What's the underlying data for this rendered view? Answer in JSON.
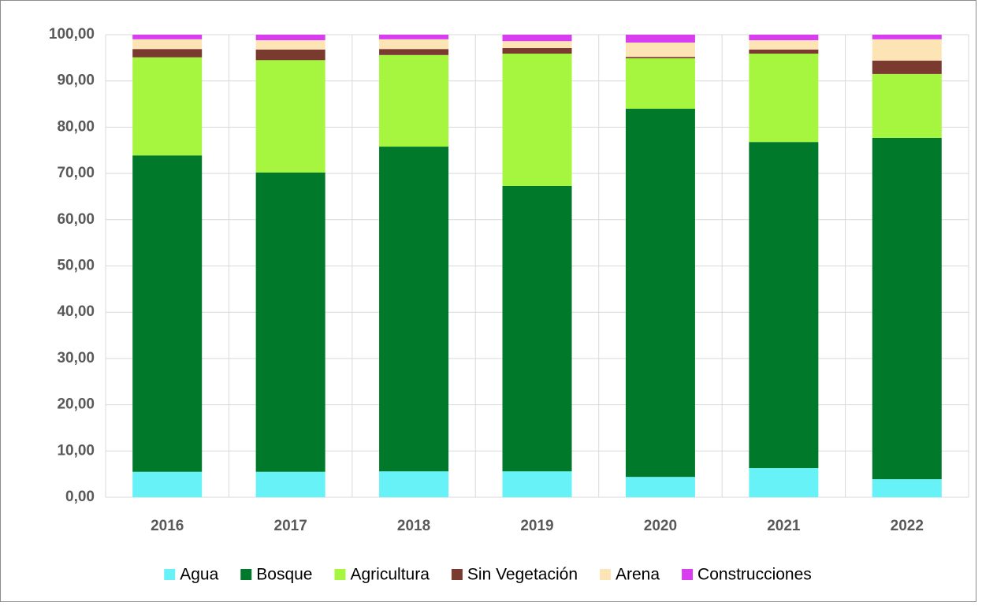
{
  "chart_data": {
    "type": "stacked_bar",
    "categories": [
      "2016",
      "2017",
      "2018",
      "2019",
      "2020",
      "2021",
      "2022"
    ],
    "series": [
      {
        "name": "Agua",
        "color": "#66f2f7",
        "values": [
          5.5,
          5.5,
          5.6,
          5.6,
          4.4,
          6.3,
          3.9
        ]
      },
      {
        "name": "Bosque",
        "color": "#007a2a",
        "values": [
          68.4,
          64.7,
          70.2,
          61.7,
          79.6,
          70.5,
          73.8
        ]
      },
      {
        "name": "Agricultura",
        "color": "#a6f53e",
        "values": [
          21.2,
          24.3,
          19.8,
          28.6,
          10.9,
          19.1,
          13.8
        ]
      },
      {
        "name": "Sin Vegetación",
        "color": "#7a3a30",
        "values": [
          1.8,
          2.3,
          1.3,
          1.2,
          0.3,
          0.9,
          2.9
        ]
      },
      {
        "name": "Arena",
        "color": "#fce4b4",
        "values": [
          2.1,
          2.0,
          2.1,
          1.5,
          3.1,
          2.0,
          4.6
        ]
      },
      {
        "name": "Construcciones",
        "color": "#d83df0",
        "values": [
          1.0,
          1.2,
          1.0,
          1.4,
          1.7,
          1.2,
          1.0
        ]
      }
    ],
    "ylim": [
      0,
      100
    ],
    "yticks": [
      {
        "value": 0,
        "label": "0,00"
      },
      {
        "value": 10,
        "label": "10,00"
      },
      {
        "value": 20,
        "label": "20,00"
      },
      {
        "value": 30,
        "label": "30,00"
      },
      {
        "value": 40,
        "label": "40,00"
      },
      {
        "value": 50,
        "label": "50,00"
      },
      {
        "value": 60,
        "label": "60,00"
      },
      {
        "value": 70,
        "label": "70,00"
      },
      {
        "value": 80,
        "label": "80,00"
      },
      {
        "value": 90,
        "label": "90,00"
      },
      {
        "value": 100,
        "label": "100,00"
      }
    ],
    "grid": true,
    "legend": "bottom"
  }
}
